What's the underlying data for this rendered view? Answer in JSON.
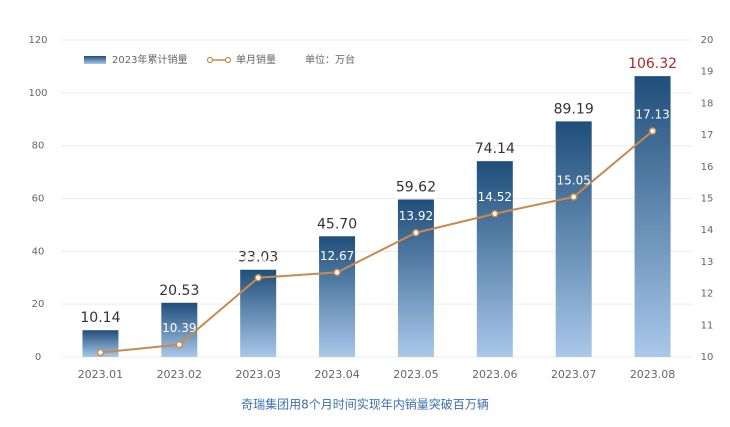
{
  "chart_data": {
    "type": "bar",
    "categories": [
      "2023.01",
      "2023.02",
      "2023.03",
      "2023.04",
      "2023.05",
      "2023.06",
      "2023.07",
      "2023.08"
    ],
    "series": [
      {
        "name": "2023年累计销量",
        "type": "bar",
        "color": "#1f4e7a",
        "color_light": "#a9c8ea",
        "values": [
          10.14,
          20.53,
          33.03,
          45.7,
          59.62,
          74.14,
          89.19,
          106.32
        ],
        "value_labels": [
          "10.14",
          "20.53",
          "33.03",
          "45.70",
          "59.62",
          "74.14",
          "89.19",
          "106.32"
        ]
      },
      {
        "name": "单月销量",
        "type": "line",
        "axis": "y2",
        "color": "#c98a4e",
        "values": [
          10.14,
          10.39,
          12.5,
          12.67,
          13.92,
          14.52,
          15.05,
          17.13
        ],
        "value_labels": [
          null,
          "10.39",
          "12.50",
          "12.67",
          "13.92",
          "14.52",
          "15.05",
          "17.13"
        ]
      }
    ],
    "unit": "单位：万台",
    "caption": "奇瑞集团用8个月时间实现年内销量突破百万辆",
    "ylim": [
      0,
      120
    ],
    "yticks": [
      0,
      20,
      40,
      60,
      80,
      100,
      120
    ],
    "y2lim": [
      10,
      20
    ],
    "y2ticks": [
      10,
      11,
      12,
      13,
      14,
      15,
      16,
      17,
      18,
      19,
      20
    ],
    "grid": true,
    "highlight_color": "#b0282e"
  }
}
